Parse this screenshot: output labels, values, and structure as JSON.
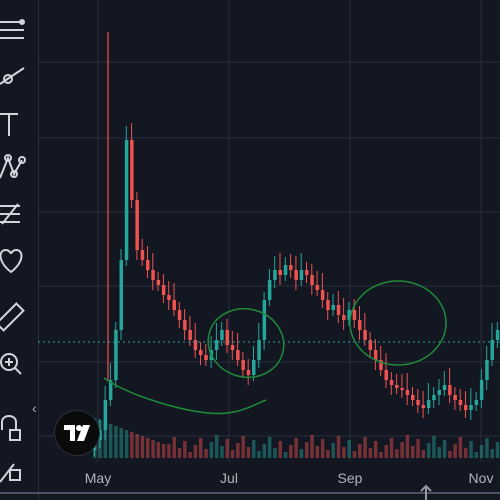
{
  "toolbar": {
    "icons": [
      "menu-lines-icon",
      "trend-line-icon",
      "text-icon",
      "pattern-icon",
      "fib-icon",
      "heart-icon",
      "ruler-icon",
      "zoom-in-icon",
      "magnet-lock-icon",
      "lock-pencil-icon"
    ]
  },
  "chart": {
    "x_axis_labels": [
      "May",
      "Jul",
      "Sep",
      "Nov"
    ],
    "colors": {
      "background": "#131722",
      "up": "#26a69a",
      "down": "#ef5350",
      "grid": "#2a2e39",
      "price_line": "#26a69a",
      "annotation": "#1f8a3c",
      "axis_text": "#b2b5be"
    },
    "annotations": [
      "curve-stroke",
      "ellipse-circle-left",
      "ellipse-circle-right"
    ]
  },
  "controls": {
    "collapse_glyph": "‹",
    "scroll_up_glyph": "⇡"
  }
}
